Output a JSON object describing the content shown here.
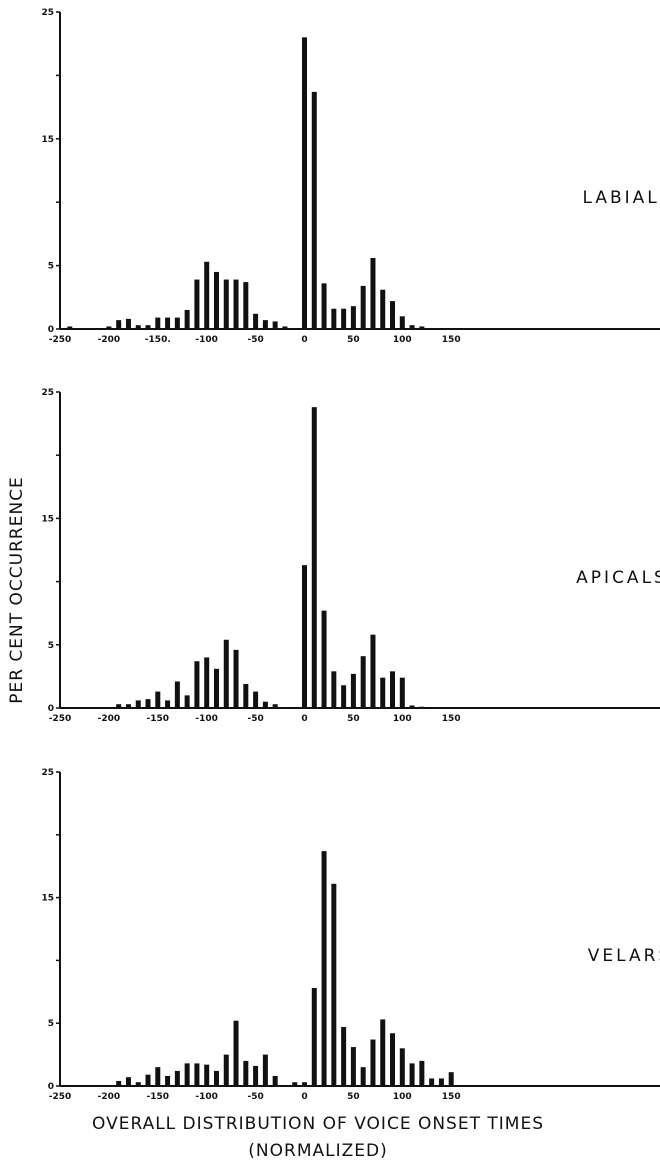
{
  "figure": {
    "ylabel": "PER CENT OCCURRENCE",
    "caption_line1": "OVERALL DISTRIBUTION OF VOICE ONSET TIMES",
    "caption_line2": "(NORMALIZED)"
  },
  "chart_data": [
    {
      "type": "bar",
      "title": "LABIALS",
      "ylabel": "PER CENT OCCURRENCE",
      "xlim": [
        -250,
        200
      ],
      "ylim": [
        0,
        25
      ],
      "y_ticks": [
        0,
        5,
        15,
        25
      ],
      "x_ticks": [
        -250,
        -200,
        -150,
        -100,
        -50,
        0,
        50,
        100,
        150
      ],
      "x_tick_labels": [
        "-250",
        "-200",
        "-150.",
        "-100",
        "-50",
        "0",
        "50",
        "100",
        "150"
      ],
      "grid": false,
      "x": [
        -240,
        -200,
        -190,
        -180,
        -170,
        -160,
        -150,
        -140,
        -130,
        -120,
        -110,
        -100,
        -90,
        -80,
        -70,
        -60,
        -50,
        -40,
        -30,
        -20,
        0,
        10,
        20,
        30,
        40,
        50,
        60,
        70,
        80,
        90,
        100,
        110,
        120
      ],
      "values": [
        0.2,
        0.2,
        0.7,
        0.8,
        0.3,
        0.3,
        0.9,
        0.9,
        0.9,
        1.5,
        3.9,
        5.3,
        4.5,
        3.9,
        3.9,
        3.7,
        1.2,
        0.7,
        0.6,
        0.2,
        23.0,
        18.7,
        3.6,
        1.6,
        1.6,
        1.8,
        3.4,
        5.6,
        3.1,
        2.2,
        1.0,
        0.3,
        0.2
      ]
    },
    {
      "type": "bar",
      "title": "APICALS",
      "ylabel": "PER CENT OCCURRENCE",
      "xlim": [
        -250,
        200
      ],
      "ylim": [
        0,
        25
      ],
      "y_ticks": [
        0,
        5,
        15,
        25
      ],
      "x_ticks": [
        -250,
        -200,
        -150,
        -100,
        -50,
        0,
        50,
        100,
        150
      ],
      "x_tick_labels": [
        "-250",
        "-200",
        "-150",
        "-100",
        "-50",
        "0",
        "50",
        "100",
        "150"
      ],
      "grid": false,
      "x": [
        -190,
        -180,
        -170,
        -160,
        -150,
        -140,
        -130,
        -120,
        -110,
        -100,
        -90,
        -80,
        -70,
        -60,
        -50,
        -40,
        -30,
        -10,
        0,
        10,
        20,
        30,
        40,
        50,
        60,
        70,
        80,
        90,
        100,
        110,
        120
      ],
      "values": [
        0.3,
        0.3,
        0.6,
        0.7,
        1.3,
        0.6,
        2.1,
        1.0,
        3.7,
        4.0,
        3.1,
        5.4,
        4.6,
        1.9,
        1.3,
        0.5,
        0.3,
        0.0,
        11.3,
        23.8,
        7.7,
        2.9,
        1.8,
        2.7,
        4.1,
        5.8,
        2.4,
        2.9,
        2.4,
        0.2,
        0.1
      ]
    },
    {
      "type": "bar",
      "title": "VELARS",
      "ylabel": "PER CENT OCCURRENCE",
      "xlabel": "OVERALL DISTRIBUTION OF VOICE ONSET TIMES (NORMALIZED)",
      "xlim": [
        -250,
        200
      ],
      "ylim": [
        0,
        25
      ],
      "y_ticks": [
        0,
        5,
        15,
        25
      ],
      "x_ticks": [
        -250,
        -200,
        -150,
        -100,
        -50,
        0,
        50,
        100,
        150
      ],
      "x_tick_labels": [
        "-250",
        "-200",
        "-150",
        "-100",
        "-50",
        "0",
        "50",
        "100",
        "150"
      ],
      "grid": false,
      "x": [
        -190,
        -180,
        -170,
        -160,
        -150,
        -140,
        -130,
        -120,
        -110,
        -100,
        -90,
        -80,
        -70,
        -60,
        -50,
        -40,
        -30,
        -10,
        0,
        10,
        20,
        30,
        40,
        50,
        60,
        70,
        80,
        90,
        100,
        110,
        120,
        130,
        140,
        150
      ],
      "values": [
        0.4,
        0.7,
        0.3,
        0.9,
        1.5,
        0.8,
        1.2,
        1.8,
        1.8,
        1.7,
        1.2,
        2.5,
        5.2,
        2.0,
        1.6,
        2.5,
        0.8,
        0.3,
        0.3,
        7.8,
        18.7,
        16.1,
        4.7,
        3.1,
        1.5,
        3.7,
        5.3,
        4.2,
        3.0,
        1.8,
        2.0,
        0.6,
        0.6,
        1.1
      ]
    }
  ]
}
